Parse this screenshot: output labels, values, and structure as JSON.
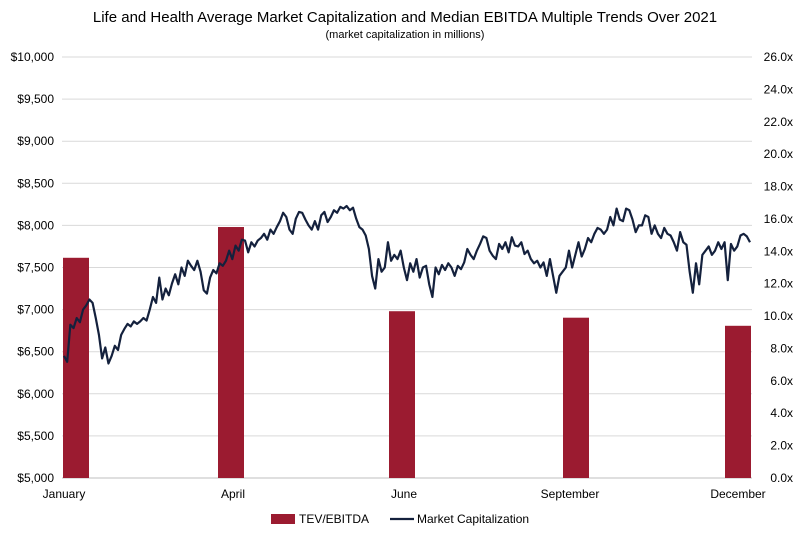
{
  "chart_data": {
    "type": "bar+line",
    "title": "Life and Health Average Market Capitalization and Median EBITDA Multiple Trends Over 2021",
    "subtitle": "(market capitalization in millions)",
    "x_tick_labels": [
      "January",
      "April",
      "June",
      "September",
      "December"
    ],
    "y_left": {
      "min": 5000,
      "max": 10000,
      "step": 500,
      "tick_labels": [
        "$5,000",
        "$5,500",
        "$6,000",
        "$6,500",
        "$7,000",
        "$7,500",
        "$8,000",
        "$8,500",
        "$9,000",
        "$9,500",
        "$10,000"
      ]
    },
    "y_right": {
      "min": 0,
      "max": 26,
      "step": 2,
      "tick_labels": [
        "0.0x",
        "2.0x",
        "4.0x",
        "6.0x",
        "8.0x",
        "10.0x",
        "12.0x",
        "14.0x",
        "16.0x",
        "18.0x",
        "20.0x",
        "22.0x",
        "24.0x",
        "26.0x"
      ]
    },
    "grid": true,
    "legend_position": "bottom",
    "bar_series": {
      "name": "TEV/EBITDA",
      "color": "#9b1b30",
      "categories": [
        "January",
        "April",
        "June",
        "September",
        "December"
      ],
      "values": [
        13.6,
        15.5,
        10.3,
        9.9,
        9.4
      ]
    },
    "line_series": {
      "name": "Market Capitalization",
      "color": "#14213d",
      "values": [
        6450,
        6380,
        6820,
        6780,
        6900,
        6850,
        7000,
        7050,
        7120,
        7080,
        6900,
        6700,
        6420,
        6550,
        6360,
        6450,
        6570,
        6520,
        6700,
        6770,
        6830,
        6800,
        6860,
        6830,
        6860,
        6900,
        6870,
        7000,
        7150,
        7080,
        7380,
        7120,
        7250,
        7170,
        7310,
        7420,
        7300,
        7500,
        7400,
        7580,
        7520,
        7470,
        7580,
        7450,
        7230,
        7190,
        7380,
        7470,
        7430,
        7550,
        7520,
        7580,
        7700,
        7600,
        7760,
        7700,
        7830,
        7820,
        7680,
        7800,
        7750,
        7820,
        7850,
        7900,
        7830,
        7950,
        7900,
        7980,
        8050,
        8150,
        8100,
        7950,
        7900,
        8080,
        8160,
        8150,
        8070,
        8000,
        7950,
        8050,
        7950,
        8120,
        8160,
        8040,
        8100,
        8180,
        8150,
        8220,
        8200,
        8230,
        8180,
        8210,
        8080,
        7980,
        7950,
        7880,
        7720,
        7400,
        7250,
        7600,
        7450,
        7500,
        7800,
        7580,
        7650,
        7600,
        7700,
        7500,
        7350,
        7550,
        7450,
        7600,
        7380,
        7500,
        7520,
        7300,
        7150,
        7500,
        7420,
        7530,
        7470,
        7550,
        7500,
        7400,
        7520,
        7480,
        7560,
        7720,
        7650,
        7600,
        7700,
        7780,
        7870,
        7850,
        7700,
        7640,
        7600,
        7780,
        7720,
        7800,
        7680,
        7860,
        7760,
        7750,
        7800,
        7660,
        7700,
        7600,
        7550,
        7580,
        7500,
        7560,
        7400,
        7600,
        7400,
        7200,
        7400,
        7450,
        7500,
        7700,
        7500,
        7650,
        7800,
        7630,
        7720,
        7850,
        7800,
        7900,
        7970,
        7950,
        7900,
        7950,
        8100,
        8000,
        8200,
        8070,
        8050,
        8200,
        8180,
        8070,
        7920,
        8000,
        8000,
        8120,
        8100,
        7900,
        8000,
        7900,
        7850,
        7970,
        7900,
        7880,
        7800,
        7700,
        7920,
        7800,
        7770,
        7450,
        7200,
        7550,
        7300,
        7650,
        7700,
        7750,
        7650,
        7700,
        7800,
        7720,
        7800,
        7350,
        7780,
        7700,
        7750,
        7880,
        7900,
        7870,
        7800
      ]
    }
  }
}
